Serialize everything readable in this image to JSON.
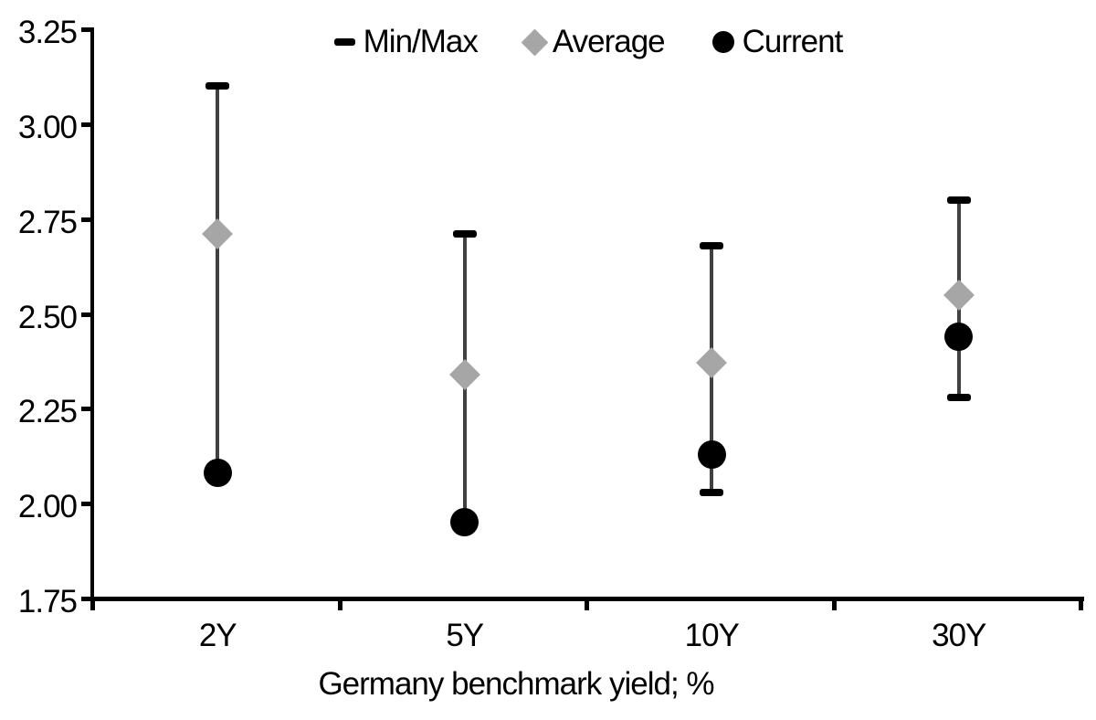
{
  "chart_data": {
    "type": "scatter",
    "subtype": "min-max-range-with-markers",
    "title": "",
    "xlabel": "Germany benchmark yield; %",
    "ylabel": "",
    "categories": [
      "2Y",
      "5Y",
      "10Y",
      "30Y"
    ],
    "series": [
      {
        "name": "Max",
        "values": [
          3.1,
          2.71,
          2.68,
          2.8
        ]
      },
      {
        "name": "Min",
        "values": [
          2.08,
          1.95,
          2.03,
          2.28
        ]
      },
      {
        "name": "Average",
        "values": [
          2.71,
          2.34,
          2.37,
          2.55
        ]
      },
      {
        "name": "Current",
        "values": [
          2.08,
          1.95,
          2.13,
          2.44
        ]
      }
    ],
    "ylim": [
      1.75,
      3.25
    ],
    "ytick_step": 0.25,
    "ytick_labels": [
      "3.25",
      "3.00",
      "2.75",
      "2.50",
      "2.25",
      "2.00",
      "1.75"
    ],
    "legend": [
      {
        "label": "Min/Max",
        "marker": "dash"
      },
      {
        "label": "Average",
        "marker": "diamond"
      },
      {
        "label": "Current",
        "marker": "circle"
      }
    ],
    "legend_position": "top-center",
    "grid": false,
    "colors": {
      "range_line": "#404040",
      "cap": "#000000",
      "average": "#a6a6a6",
      "current": "#000000",
      "axis": "#000000",
      "text": "#000000",
      "background": "#ffffff"
    }
  }
}
